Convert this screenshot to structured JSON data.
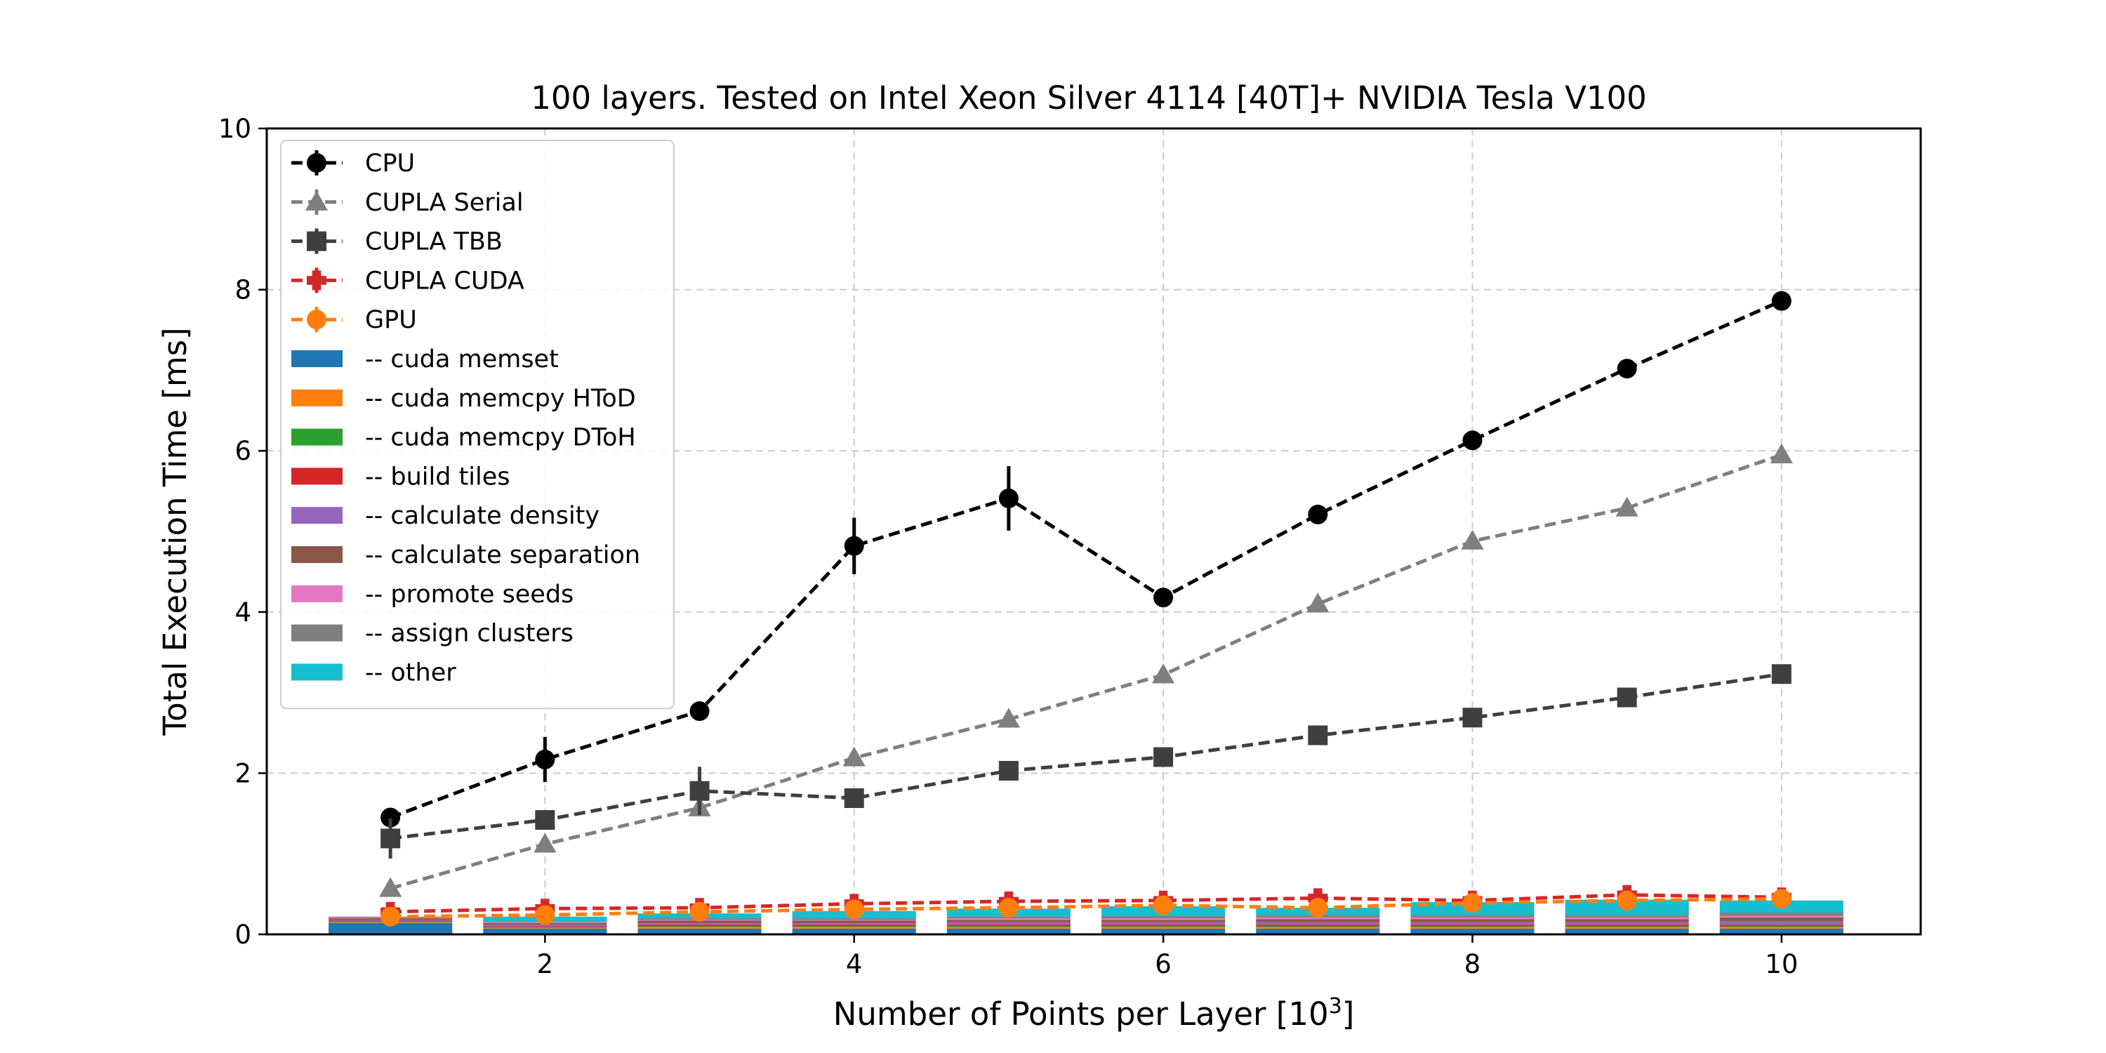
{
  "chart_data": {
    "type": "line",
    "title": "100 layers. Tested on Intel Xeon Silver 4114 [40T]+ NVIDIA Tesla V100",
    "xlabel": "Number of Points per Layer [10",
    "xlabel_sup": "3",
    "xlabel_end": "]",
    "ylabel": "Total Execution Time [ms]",
    "xlim": [
      0.2,
      10.9
    ],
    "ylim": [
      0,
      10
    ],
    "xticks": [
      2,
      4,
      6,
      8,
      10
    ],
    "yticks": [
      0,
      2,
      4,
      6,
      8,
      10
    ],
    "grid": true,
    "legend_position": "upper-left",
    "x": [
      1,
      2,
      3,
      4,
      5,
      6,
      7,
      8,
      9,
      10
    ],
    "line_series": [
      {
        "name": "CPU",
        "color": "#000000",
        "marker": "circle",
        "values": [
          1.45,
          2.17,
          2.77,
          4.82,
          5.41,
          4.18,
          5.21,
          6.13,
          7.02,
          7.86
        ],
        "errors": [
          0.08,
          0.28,
          0.1,
          0.35,
          0.4,
          0.1,
          0.1,
          0.1,
          0.1,
          0.1
        ]
      },
      {
        "name": "CUPLA Serial",
        "color": "#7f7f7f",
        "marker": "triangle",
        "values": [
          0.57,
          1.12,
          1.57,
          2.19,
          2.67,
          3.22,
          4.1,
          4.88,
          5.29,
          5.95
        ],
        "errors": [
          0.05,
          0.05,
          0.05,
          0.05,
          0.05,
          0.05,
          0.05,
          0.05,
          0.05,
          0.05
        ]
      },
      {
        "name": "CUPLA TBB",
        "color": "#3f3f3f",
        "marker": "square",
        "values": [
          1.19,
          1.42,
          1.78,
          1.69,
          2.03,
          2.2,
          2.47,
          2.69,
          2.94,
          3.23
        ],
        "errors": [
          0.25,
          0.1,
          0.3,
          0.05,
          0.1,
          0.05,
          0.05,
          0.05,
          0.05,
          0.05
        ]
      },
      {
        "name": "CUPLA CUDA",
        "color": "#d62728",
        "marker": "plus",
        "values": [
          0.28,
          0.32,
          0.33,
          0.38,
          0.41,
          0.42,
          0.45,
          0.42,
          0.49,
          0.46
        ],
        "errors": [
          0.04,
          0.04,
          0.04,
          0.04,
          0.04,
          0.04,
          0.04,
          0.04,
          0.04,
          0.04
        ]
      },
      {
        "name": "GPU",
        "color": "#ff7f0e",
        "marker": "circle",
        "values": [
          0.22,
          0.24,
          0.28,
          0.31,
          0.33,
          0.36,
          0.33,
          0.39,
          0.42,
          0.44
        ],
        "errors": [
          0.04,
          0.04,
          0.04,
          0.04,
          0.04,
          0.04,
          0.04,
          0.04,
          0.04,
          0.04
        ]
      }
    ],
    "bar_series": [
      {
        "name": "-- cuda memset",
        "color": "#1f77b4",
        "values": [
          0.14,
          0.07,
          0.07,
          0.07,
          0.07,
          0.07,
          0.07,
          0.07,
          0.07,
          0.07
        ]
      },
      {
        "name": "-- cuda memcpy HToD",
        "color": "#ff7f0e",
        "values": [
          0.01,
          0.01,
          0.02,
          0.02,
          0.02,
          0.02,
          0.02,
          0.02,
          0.02,
          0.02
        ]
      },
      {
        "name": "-- cuda memcpy DToH",
        "color": "#2ca02c",
        "values": [
          0.01,
          0.01,
          0.01,
          0.01,
          0.01,
          0.01,
          0.01,
          0.01,
          0.01,
          0.01
        ]
      },
      {
        "name": "-- build tiles",
        "color": "#d62728",
        "values": [
          0.01,
          0.01,
          0.02,
          0.02,
          0.02,
          0.02,
          0.02,
          0.02,
          0.02,
          0.02
        ]
      },
      {
        "name": "-- calculate density",
        "color": "#9467bd",
        "values": [
          0.01,
          0.02,
          0.02,
          0.02,
          0.03,
          0.03,
          0.03,
          0.03,
          0.03,
          0.04
        ]
      },
      {
        "name": "-- calculate separation",
        "color": "#8c564b",
        "values": [
          0.02,
          0.02,
          0.03,
          0.03,
          0.03,
          0.03,
          0.04,
          0.04,
          0.04,
          0.05
        ]
      },
      {
        "name": "-- promote seeds",
        "color": "#e377c2",
        "values": [
          0.01,
          0.01,
          0.01,
          0.01,
          0.02,
          0.02,
          0.02,
          0.02,
          0.02,
          0.02
        ]
      },
      {
        "name": "-- assign clusters",
        "color": "#7f7f7f",
        "values": [
          0.01,
          0.01,
          0.02,
          0.02,
          0.02,
          0.03,
          0.03,
          0.03,
          0.03,
          0.04
        ]
      },
      {
        "name": "-- other",
        "color": "#17becf",
        "values": [
          0.0,
          0.06,
          0.06,
          0.09,
          0.1,
          0.12,
          0.09,
          0.16,
          0.19,
          0.15
        ]
      }
    ]
  }
}
